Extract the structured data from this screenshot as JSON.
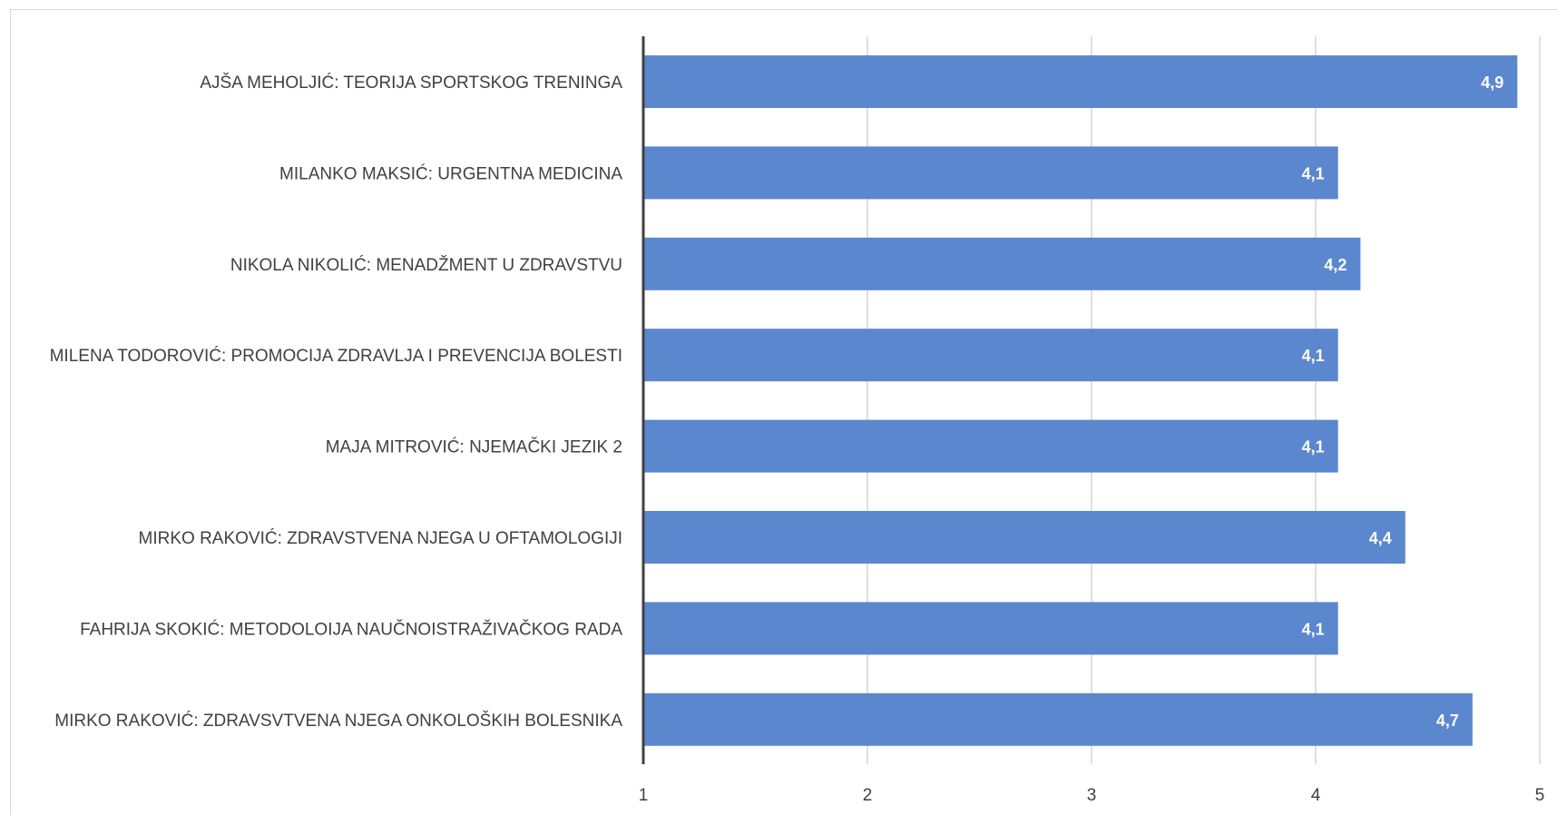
{
  "chart_data": {
    "type": "bar",
    "orientation": "horizontal",
    "categories": [
      "AJŠA MEHOLJIĆ: TEORIJA SPORTSKOG TRENINGA",
      "MILANKO MAKSIĆ: URGENTNA MEDICINA",
      "NIKOLA NIKOLIĆ: MENADŽMENT U ZDRAVSTVU",
      "MILENA TODOROVIĆ: PROMOCIJA ZDRAVLJA I PREVENCIJA BOLESTI",
      "MAJA MITROVIĆ: NJEMAČKI JEZIK 2",
      "MIRKO RAKOVIĆ: ZDRAVSTVENA NJEGA U OFTAMOLOGIJI",
      "FAHRIJA SKOKIĆ: METODOLOIJA NAUČNOISTRAŽIVAČKOG RADA",
      "MIRKO RAKOVIĆ: ZDRAVSVTVENA NJEGA ONKOLOŠKIH BOLESNIKA"
    ],
    "values": [
      4.9,
      4.1,
      4.2,
      4.1,
      4.1,
      4.4,
      4.1,
      4.7
    ],
    "data_labels": [
      "4,9",
      "4,1",
      "4,2",
      "4,1",
      "4,1",
      "4,4",
      "4,1",
      "4,7"
    ],
    "xlim": [
      1,
      5
    ],
    "x_ticks": [
      "1",
      "2",
      "3",
      "4",
      "5"
    ],
    "grid": "vertical",
    "bar_color": "#5b87cf",
    "title": "",
    "xlabel": "",
    "ylabel": ""
  }
}
